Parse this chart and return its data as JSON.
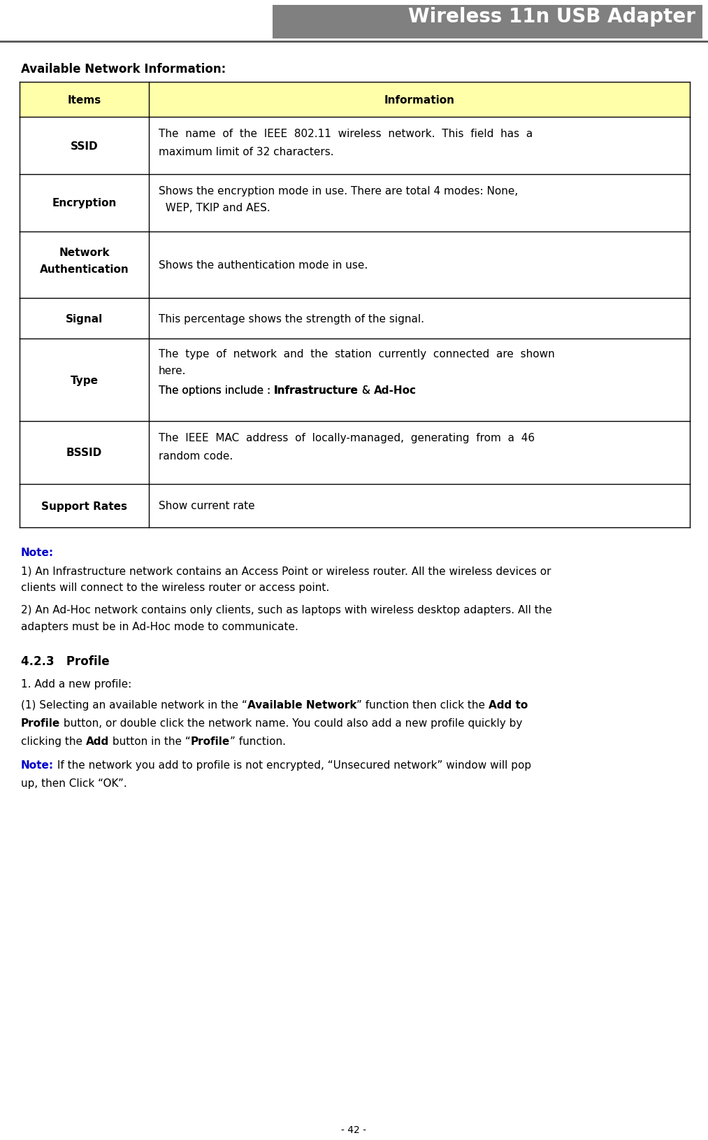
{
  "title": "Wireless 11n USB Adapter",
  "title_bg": "#808080",
  "title_color": "#ffffff",
  "page_bg": "#ffffff",
  "section_heading": "Available Network Information:",
  "table_header_bg": "#ffffaa",
  "table_border": "#000000",
  "note_color": "#0000cc",
  "footer": "- 42 -",
  "font_size_title": 20,
  "font_size_heading": 12,
  "font_size_body": 11,
  "font_size_footer": 10
}
